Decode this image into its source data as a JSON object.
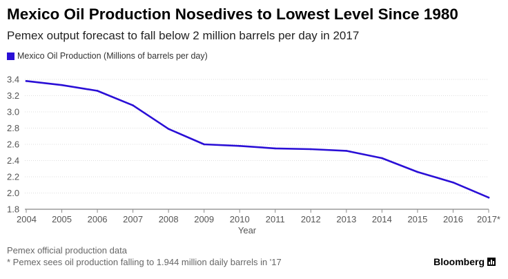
{
  "chart_data": {
    "type": "line",
    "title": "Mexico Oil Production Nosedives to Lowest Level Since 1980",
    "subtitle": "Pemex output forecast to fall below 2 million barrels per day in 2017",
    "xlabel": "Year",
    "ylabel": "",
    "categories": [
      "2004",
      "2005",
      "2006",
      "2007",
      "2008",
      "2009",
      "2010",
      "2011",
      "2012",
      "2013",
      "2014",
      "2015",
      "2016",
      "2017*"
    ],
    "series": [
      {
        "name": "Mexico Oil Production (Millions of barrels per day)",
        "color": "#2a0fd6",
        "values": [
          3.38,
          3.33,
          3.26,
          3.08,
          2.79,
          2.6,
          2.58,
          2.55,
          2.54,
          2.52,
          2.43,
          2.26,
          2.13,
          1.944
        ]
      }
    ],
    "ylim": [
      1.8,
      3.4
    ],
    "yticks": [
      "1.8",
      "2.0",
      "2.2",
      "2.4",
      "2.6",
      "2.8",
      "3.0",
      "3.2",
      "3.4"
    ],
    "grid": true,
    "legend_position": "top-left"
  },
  "footer": {
    "source": "Pemex official production data",
    "note": "* Pemex sees oil production falling to 1.944 million daily barrels in '17",
    "brand": "Bloomberg"
  }
}
